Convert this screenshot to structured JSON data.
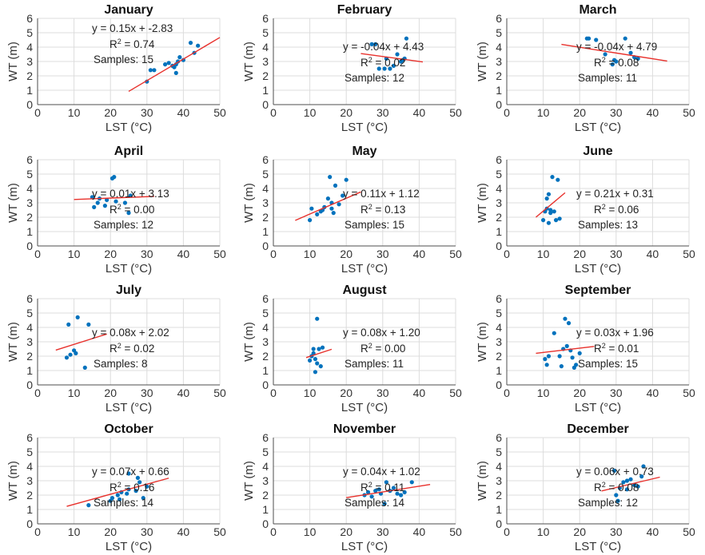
{
  "style": {
    "point_color": "#0072bd",
    "fit_line_color": "#e8302b",
    "grid_color": "#dcdcdc",
    "axis_color": "#4d4d4d"
  },
  "chart_data": [
    {
      "type": "scatter",
      "title": "January",
      "xlabel": "LST (°C)",
      "ylabel": "WT (m)",
      "xlim": [
        0,
        50
      ],
      "ylim": [
        0,
        6
      ],
      "xticks": [
        0,
        10,
        20,
        30,
        40,
        50
      ],
      "yticks": [
        0,
        1,
        2,
        3,
        4,
        5,
        6
      ],
      "grid": true,
      "points": [
        [
          30,
          1.6
        ],
        [
          31,
          2.4
        ],
        [
          32,
          2.4
        ],
        [
          35,
          2.8
        ],
        [
          36,
          2.9
        ],
        [
          37,
          2.7
        ],
        [
          37.5,
          2.6
        ],
        [
          38,
          2.2
        ],
        [
          38.5,
          3.0
        ],
        [
          39,
          3.3
        ],
        [
          40,
          3.1
        ],
        [
          42,
          4.3
        ],
        [
          43,
          3.6
        ],
        [
          44,
          4.1
        ],
        [
          38,
          2.8
        ]
      ],
      "fit": {
        "x": [
          25,
          50
        ],
        "y": [
          0.92,
          4.67
        ]
      },
      "annotations": {
        "equation": "y = 0.15x + -2.83",
        "r2_label": "R",
        "r2_sup": "2",
        "r2_value": " = 0.74",
        "samples": "Samples: 15"
      }
    },
    {
      "type": "scatter",
      "title": "February",
      "xlabel": "LST (°C)",
      "ylabel": "WT (m)",
      "xlim": [
        0,
        50
      ],
      "ylim": [
        0,
        6
      ],
      "xticks": [
        0,
        10,
        20,
        30,
        40,
        50
      ],
      "yticks": [
        0,
        1,
        2,
        3,
        4,
        5,
        6
      ],
      "grid": true,
      "points": [
        [
          27,
          4.2
        ],
        [
          28,
          4.2
        ],
        [
          29,
          2.5
        ],
        [
          30.5,
          2.5
        ],
        [
          32,
          2.5
        ],
        [
          33,
          2.7
        ],
        [
          34,
          3.5
        ],
        [
          35,
          3.0
        ],
        [
          36,
          3.2
        ],
        [
          36.5,
          4.6
        ],
        [
          35.5,
          3.1
        ],
        [
          31,
          3.2
        ]
      ],
      "fit": {
        "x": [
          24,
          41
        ],
        "y": [
          3.55,
          2.97
        ]
      },
      "annotations": {
        "equation": "y = -0.04x + 4.43",
        "r2_label": "R",
        "r2_sup": "2",
        "r2_value": " = 0.02",
        "samples": "Samples: 12"
      }
    },
    {
      "type": "scatter",
      "title": "March",
      "xlabel": "LST (°C)",
      "ylabel": "WT (m)",
      "xlim": [
        0,
        50
      ],
      "ylim": [
        0,
        6
      ],
      "xticks": [
        0,
        10,
        20,
        30,
        40,
        50
      ],
      "yticks": [
        0,
        1,
        2,
        3,
        4,
        5,
        6
      ],
      "grid": true,
      "points": [
        [
          22,
          4.6
        ],
        [
          22.5,
          4.6
        ],
        [
          24.5,
          4.5
        ],
        [
          27,
          3.5
        ],
        [
          29,
          2.8
        ],
        [
          30,
          3.0
        ],
        [
          32.5,
          4.6
        ],
        [
          34,
          3.6
        ],
        [
          36,
          3.2
        ],
        [
          29.5,
          3.1
        ],
        [
          35,
          3.3
        ]
      ],
      "fit": {
        "x": [
          15,
          44
        ],
        "y": [
          4.19,
          3.03
        ]
      },
      "annotations": {
        "equation": "y = -0.04x + 4.79",
        "r2_label": "R",
        "r2_sup": "2",
        "r2_value": " = 0.08",
        "samples": "Samples: 11"
      }
    },
    {
      "type": "scatter",
      "title": "April",
      "xlabel": "LST (°C)",
      "ylabel": "WT (m)",
      "xlim": [
        0,
        50
      ],
      "ylim": [
        0,
        6
      ],
      "xticks": [
        0,
        10,
        20,
        30,
        40,
        50
      ],
      "yticks": [
        0,
        1,
        2,
        3,
        4,
        5,
        6
      ],
      "grid": true,
      "points": [
        [
          15,
          3.4
        ],
        [
          15.5,
          2.7
        ],
        [
          16.5,
          3.0
        ],
        [
          17,
          3.3
        ],
        [
          18.5,
          2.8
        ],
        [
          19,
          3.2
        ],
        [
          20.5,
          4.7
        ],
        [
          21,
          4.8
        ],
        [
          21.5,
          3.1
        ],
        [
          24,
          3.0
        ],
        [
          25,
          2.3
        ],
        [
          25.5,
          3.5
        ]
      ],
      "fit": {
        "x": [
          10,
          32
        ],
        "y": [
          3.23,
          3.45
        ]
      },
      "annotations": {
        "equation": "y = 0.01x + 3.13",
        "r2_label": "R",
        "r2_sup": "2",
        "r2_value": " = 0.00",
        "samples": "Samples: 12"
      }
    },
    {
      "type": "scatter",
      "title": "May",
      "xlabel": "LST (°C)",
      "ylabel": "WT (m)",
      "xlim": [
        0,
        50
      ],
      "ylim": [
        0,
        6
      ],
      "xticks": [
        0,
        10,
        20,
        30,
        40,
        50
      ],
      "yticks": [
        0,
        1,
        2,
        3,
        4,
        5,
        6
      ],
      "grid": true,
      "points": [
        [
          10,
          1.8
        ],
        [
          10.5,
          2.6
        ],
        [
          12,
          2.2
        ],
        [
          13,
          2.4
        ],
        [
          14,
          2.7
        ],
        [
          15,
          3.3
        ],
        [
          15.5,
          4.8
        ],
        [
          16,
          2.6
        ],
        [
          16.5,
          2.3
        ],
        [
          17,
          4.2
        ],
        [
          18,
          2.9
        ],
        [
          19,
          3.5
        ],
        [
          20,
          4.6
        ],
        [
          16,
          3.0
        ],
        [
          13.5,
          2.5
        ]
      ],
      "fit": {
        "x": [
          6,
          24
        ],
        "y": [
          1.78,
          3.76
        ]
      },
      "annotations": {
        "equation": "y = 0.11x + 1.12",
        "r2_label": "R",
        "r2_sup": "2",
        "r2_value": " = 0.13",
        "samples": "Samples: 15"
      }
    },
    {
      "type": "scatter",
      "title": "June",
      "xlabel": "LST (°C)",
      "ylabel": "WT (m)",
      "xlim": [
        0,
        50
      ],
      "ylim": [
        0,
        6
      ],
      "xticks": [
        0,
        10,
        20,
        30,
        40,
        50
      ],
      "yticks": [
        0,
        1,
        2,
        3,
        4,
        5,
        6
      ],
      "grid": true,
      "points": [
        [
          10,
          1.8
        ],
        [
          10.5,
          2.4
        ],
        [
          11,
          3.3
        ],
        [
          11.5,
          3.6
        ],
        [
          11.5,
          1.6
        ],
        [
          12,
          2.5
        ],
        [
          12.5,
          4.8
        ],
        [
          13,
          2.4
        ],
        [
          13.5,
          1.8
        ],
        [
          14,
          4.6
        ],
        [
          14.5,
          1.9
        ],
        [
          12,
          2.3
        ],
        [
          11,
          2.6
        ]
      ],
      "fit": {
        "x": [
          8,
          16
        ],
        "y": [
          2.0,
          3.7
        ]
      },
      "annotations": {
        "equation": "y = 0.21x + 0.31",
        "r2_label": "R",
        "r2_sup": "2",
        "r2_value": " = 0.06",
        "samples": "Samples: 13"
      }
    },
    {
      "type": "scatter",
      "title": "July",
      "xlabel": "LST (°C)",
      "ylabel": "WT (m)",
      "xlim": [
        0,
        50
      ],
      "ylim": [
        0,
        6
      ],
      "xticks": [
        0,
        10,
        20,
        30,
        40,
        50
      ],
      "yticks": [
        0,
        1,
        2,
        3,
        4,
        5,
        6
      ],
      "grid": true,
      "points": [
        [
          8,
          1.9
        ],
        [
          8.5,
          4.2
        ],
        [
          9,
          2.1
        ],
        [
          10,
          2.4
        ],
        [
          10.5,
          2.2
        ],
        [
          11,
          4.7
        ],
        [
          13,
          1.2
        ],
        [
          14,
          4.2
        ]
      ],
      "fit": {
        "x": [
          5,
          19
        ],
        "y": [
          2.42,
          3.54
        ]
      },
      "annotations": {
        "equation": "y = 0.08x + 2.02",
        "r2_label": "R",
        "r2_sup": "2",
        "r2_value": " = 0.02",
        "samples": "Samples: 8"
      }
    },
    {
      "type": "scatter",
      "title": "August",
      "xlabel": "LST (°C)",
      "ylabel": "WT (m)",
      "xlim": [
        0,
        50
      ],
      "ylim": [
        0,
        6
      ],
      "xticks": [
        0,
        10,
        20,
        30,
        40,
        50
      ],
      "yticks": [
        0,
        1,
        2,
        3,
        4,
        5,
        6
      ],
      "grid": true,
      "points": [
        [
          10,
          1.7
        ],
        [
          10.5,
          2.0
        ],
        [
          11,
          2.5
        ],
        [
          11.5,
          1.8
        ],
        [
          11.5,
          0.9
        ],
        [
          12,
          4.6
        ],
        [
          12,
          1.5
        ],
        [
          12.5,
          2.5
        ],
        [
          13,
          1.3
        ],
        [
          13.5,
          2.6
        ],
        [
          11,
          2.2
        ]
      ],
      "fit": {
        "x": [
          9,
          16
        ],
        "y": [
          1.9,
          2.48
        ]
      },
      "annotations": {
        "equation": "y = 0.08x + 1.20",
        "r2_label": "R",
        "r2_sup": "2",
        "r2_value": " = 0.00",
        "samples": "Samples: 11"
      }
    },
    {
      "type": "scatter",
      "title": "September",
      "xlabel": "LST (°C)",
      "ylabel": "WT (m)",
      "xlim": [
        0,
        50
      ],
      "ylim": [
        0,
        6
      ],
      "xticks": [
        0,
        10,
        20,
        30,
        40,
        50
      ],
      "yticks": [
        0,
        1,
        2,
        3,
        4,
        5,
        6
      ],
      "grid": true,
      "points": [
        [
          10.5,
          1.8
        ],
        [
          11,
          1.4
        ],
        [
          11.5,
          2.0
        ],
        [
          13,
          3.6
        ],
        [
          14.5,
          2.0
        ],
        [
          15,
          1.3
        ],
        [
          15.5,
          2.5
        ],
        [
          16,
          4.6
        ],
        [
          16.5,
          2.7
        ],
        [
          17,
          4.3
        ],
        [
          17.5,
          2.4
        ],
        [
          18,
          1.9
        ],
        [
          18.5,
          1.2
        ],
        [
          19,
          1.4
        ],
        [
          20,
          2.2
        ]
      ],
      "fit": {
        "x": [
          8,
          24
        ],
        "y": [
          2.2,
          2.68
        ]
      },
      "annotations": {
        "equation": "y = 0.03x + 1.96",
        "r2_label": "R",
        "r2_sup": "2",
        "r2_value": " = 0.01",
        "samples": "Samples: 15"
      }
    },
    {
      "type": "scatter",
      "title": "October",
      "xlabel": "LST (°C)",
      "ylabel": "WT (m)",
      "xlim": [
        0,
        50
      ],
      "ylim": [
        0,
        6
      ],
      "xticks": [
        0,
        10,
        20,
        30,
        40,
        50
      ],
      "yticks": [
        0,
        1,
        2,
        3,
        4,
        5,
        6
      ],
      "grid": true,
      "points": [
        [
          14,
          1.3
        ],
        [
          20,
          1.6
        ],
        [
          20.5,
          1.8
        ],
        [
          22.5,
          1.7
        ],
        [
          23,
          2.2
        ],
        [
          24.5,
          2.1
        ],
        [
          25,
          3.5
        ],
        [
          27,
          2.3
        ],
        [
          29,
          1.8
        ],
        [
          27.5,
          3.2
        ],
        [
          30,
          2.6
        ],
        [
          25,
          2.4
        ],
        [
          22,
          2.0
        ],
        [
          28,
          2.9
        ]
      ],
      "fit": {
        "x": [
          8,
          36
        ],
        "y": [
          1.22,
          3.18
        ]
      },
      "annotations": {
        "equation": "y = 0.07x + 0.66",
        "r2_label": "R",
        "r2_sup": "2",
        "r2_value": " = 0.16",
        "samples": "Samples: 14"
      }
    },
    {
      "type": "scatter",
      "title": "November",
      "xlabel": "LST (°C)",
      "ylabel": "WT (m)",
      "xlim": [
        0,
        50
      ],
      "ylim": [
        0,
        6
      ],
      "xticks": [
        0,
        10,
        20,
        30,
        40,
        50
      ],
      "yticks": [
        0,
        1,
        2,
        3,
        4,
        5,
        6
      ],
      "grid": true,
      "points": [
        [
          25,
          2.0
        ],
        [
          26,
          2.2
        ],
        [
          27,
          1.9
        ],
        [
          28,
          2.3
        ],
        [
          29,
          2.4
        ],
        [
          29.5,
          2.1
        ],
        [
          30.5,
          1.4
        ],
        [
          31,
          2.9
        ],
        [
          32,
          2.3
        ],
        [
          34,
          2.1
        ],
        [
          35,
          2.0
        ],
        [
          36,
          2.2
        ],
        [
          38,
          2.9
        ],
        [
          33,
          2.5
        ]
      ],
      "fit": {
        "x": [
          20,
          43
        ],
        "y": [
          1.82,
          2.74
        ]
      },
      "annotations": {
        "equation": "y = 0.04x + 1.02",
        "r2_label": "R",
        "r2_sup": "2",
        "r2_value": " = 0.11",
        "samples": "Samples: 14"
      }
    },
    {
      "type": "scatter",
      "title": "December",
      "xlabel": "LST (°C)",
      "ylabel": "WT (m)",
      "xlim": [
        0,
        50
      ],
      "ylim": [
        0,
        6
      ],
      "xticks": [
        0,
        10,
        20,
        30,
        40,
        50
      ],
      "yticks": [
        0,
        1,
        2,
        3,
        4,
        5,
        6
      ],
      "grid": true,
      "points": [
        [
          29.5,
          3.7
        ],
        [
          30,
          2.0
        ],
        [
          30.5,
          1.6
        ],
        [
          31,
          2.5
        ],
        [
          32,
          2.9
        ],
        [
          33,
          2.4
        ],
        [
          34,
          3.1
        ],
        [
          35,
          2.7
        ],
        [
          36,
          2.6
        ],
        [
          37,
          3.3
        ],
        [
          37.5,
          4.0
        ],
        [
          33,
          3.0
        ]
      ],
      "fit": {
        "x": [
          26,
          42
        ],
        "y": [
          2.29,
          3.25
        ]
      },
      "annotations": {
        "equation": "y = 0.06x + 0.73",
        "r2_label": "R",
        "r2_sup": "2",
        "r2_value": " = 0.08",
        "samples": "Samples: 12"
      }
    }
  ]
}
